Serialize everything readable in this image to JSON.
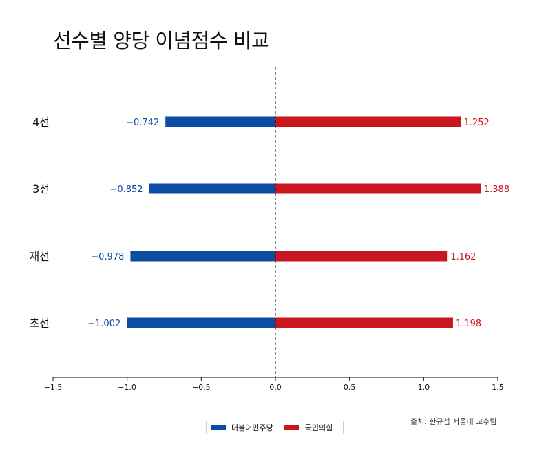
{
  "chart_data": {
    "type": "bar",
    "orientation": "horizontal",
    "title": "선수별 양당 이념점수 비교",
    "categories": [
      "4선",
      "3선",
      "재선",
      "초선"
    ],
    "series": [
      {
        "name": "더불어민주당",
        "color": "#0a4da2",
        "values": [
          -0.742,
          -0.852,
          -0.978,
          -1.002
        ],
        "labels": [
          "−0.742",
          "−0.852",
          "−0.978",
          "−1.002"
        ]
      },
      {
        "name": "국민의힘",
        "color": "#c8171e",
        "values": [
          1.252,
          1.388,
          1.162,
          1.198
        ],
        "labels": [
          "1.252",
          "1.388",
          "1.162",
          "1.198"
        ]
      }
    ],
    "xlim": [
      -1.5,
      1.5
    ],
    "xticks": [
      -1.5,
      -1.0,
      -0.5,
      0.0,
      0.5,
      1.0,
      1.5
    ],
    "xtick_labels": [
      "−1.5",
      "−1.0",
      "−0.5",
      "0.0",
      "0.5",
      "1.0",
      "1.5"
    ],
    "xlabel": "",
    "ylabel": "",
    "zero_line": "dashed",
    "grid": false,
    "legend_position": "bottom-center",
    "source": "출처: 한규섭 서울대 교수팀"
  }
}
